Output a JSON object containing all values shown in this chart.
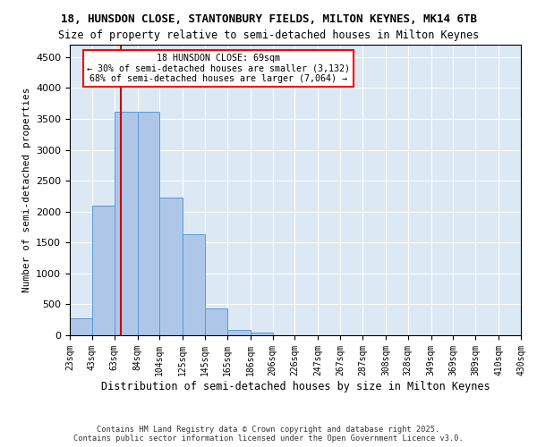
{
  "title_line1": "18, HUNSDON CLOSE, STANTONBURY FIELDS, MILTON KEYNES, MK14 6TB",
  "title_line2": "Size of property relative to semi-detached houses in Milton Keynes",
  "xlabel": "Distribution of semi-detached houses by size in Milton Keynes",
  "ylabel": "Number of semi-detached properties",
  "footer_line1": "Contains HM Land Registry data © Crown copyright and database right 2025.",
  "footer_line2": "Contains public sector information licensed under the Open Government Licence v3.0.",
  "annotation_title": "18 HUNSDON CLOSE: 69sqm",
  "annotation_line1": "← 30% of semi-detached houses are smaller (3,132)",
  "annotation_line2": "68% of semi-detached houses are larger (7,064) →",
  "property_size": 69,
  "bar_color": "#aec6e8",
  "bar_edge_color": "#5b9bd5",
  "vline_color": "#cc0000",
  "background_color": "#dce9f5",
  "categories": [
    "23sqm",
    "43sqm",
    "63sqm",
    "84sqm",
    "104sqm",
    "125sqm",
    "145sqm",
    "165sqm",
    "186sqm",
    "206sqm",
    "226sqm",
    "247sqm",
    "267sqm",
    "287sqm",
    "308sqm",
    "328sqm",
    "349sqm",
    "369sqm",
    "389sqm",
    "410sqm",
    "430sqm"
  ],
  "bin_edges": [
    23,
    43,
    63,
    84,
    104,
    125,
    145,
    165,
    186,
    206,
    226,
    247,
    267,
    287,
    308,
    328,
    349,
    369,
    389,
    410,
    430
  ],
  "values": [
    280,
    2100,
    3620,
    3620,
    2220,
    1640,
    440,
    90,
    45,
    0,
    0,
    0,
    0,
    0,
    0,
    0,
    0,
    0,
    0,
    0
  ],
  "ylim": [
    0,
    4700
  ],
  "yticks": [
    0,
    500,
    1000,
    1500,
    2000,
    2500,
    3000,
    3500,
    4000,
    4500
  ]
}
